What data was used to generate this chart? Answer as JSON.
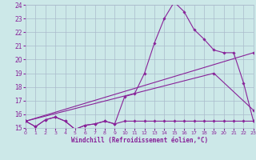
{
  "xlabel": "Windchill (Refroidissement éolien,°C)",
  "bg_color": "#cce8e8",
  "grid_color": "#aabbcc",
  "line_color": "#882299",
  "xlim": [
    0,
    23
  ],
  "ylim": [
    15,
    24
  ],
  "xticks": [
    0,
    1,
    2,
    3,
    4,
    5,
    6,
    7,
    8,
    9,
    10,
    11,
    12,
    13,
    14,
    15,
    16,
    17,
    18,
    19,
    20,
    21,
    22,
    23
  ],
  "yticks": [
    15,
    16,
    17,
    18,
    19,
    20,
    21,
    22,
    23,
    24
  ],
  "line1_x": [
    0,
    1,
    2,
    3,
    4,
    5,
    6,
    7,
    8,
    9,
    10,
    11,
    12,
    13,
    14,
    15,
    16,
    17,
    18,
    19,
    20,
    21,
    22,
    23
  ],
  "line1_y": [
    15.5,
    15.1,
    15.6,
    15.8,
    15.5,
    14.9,
    15.2,
    15.3,
    15.5,
    15.3,
    17.3,
    17.5,
    19.0,
    21.2,
    23.0,
    24.2,
    23.5,
    22.2,
    21.5,
    20.7,
    20.5,
    20.5,
    18.3,
    15.5
  ],
  "line2_x": [
    0,
    1,
    2,
    3,
    4,
    5,
    6,
    7,
    8,
    9,
    10,
    11,
    12,
    13,
    14,
    15,
    16,
    17,
    18,
    19,
    20,
    21,
    22,
    23
  ],
  "line2_y": [
    15.5,
    15.1,
    15.6,
    15.8,
    15.5,
    14.9,
    15.2,
    15.3,
    15.5,
    15.3,
    15.5,
    15.5,
    15.5,
    15.5,
    15.5,
    15.5,
    15.5,
    15.5,
    15.5,
    15.5,
    15.5,
    15.5,
    15.5,
    15.5
  ],
  "line3_x": [
    0,
    23
  ],
  "line3_y": [
    15.5,
    20.5
  ],
  "line4_x": [
    0,
    19,
    23
  ],
  "line4_y": [
    15.5,
    19.0,
    16.3
  ]
}
